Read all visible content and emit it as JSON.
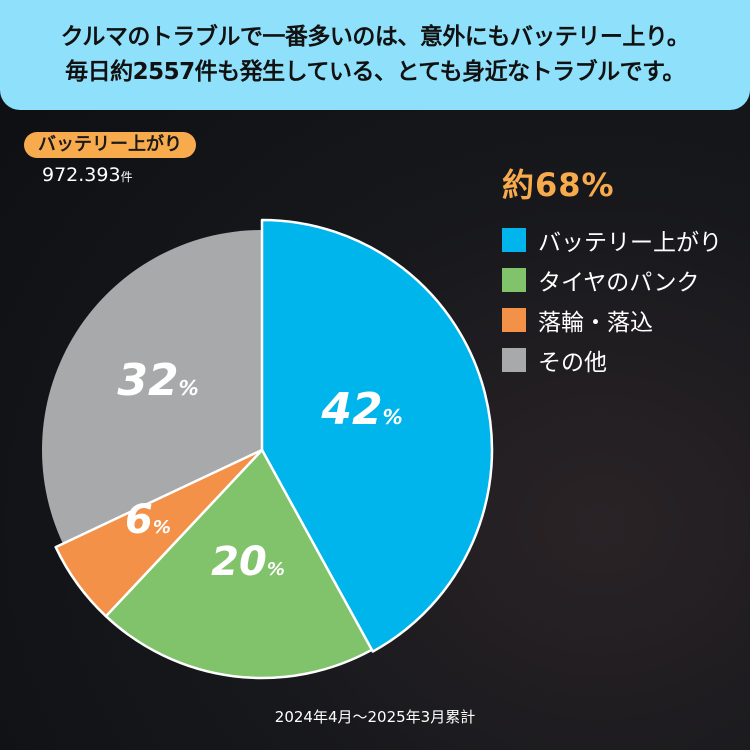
{
  "banner": {
    "line1": "クルマのトラブルで一番多いのは、意外にもバッテリー上り。",
    "line2": "毎日約2557件も発生している、とても身近なトラブルです。"
  },
  "highlight": {
    "badge": "バッテリー上がり",
    "count": "972.393",
    "count_unit": "件"
  },
  "headline_pct": "約68%",
  "legend": [
    {
      "label": "バッテリー上がり",
      "color": "#00b4ec"
    },
    {
      "label": "タイヤのパンク",
      "color": "#80c36a"
    },
    {
      "label": "落輪・落込",
      "color": "#f39149"
    },
    {
      "label": "その他",
      "color": "#a8a9aa"
    }
  ],
  "footer": "2024年4月～2025年3月累計",
  "chart_data": {
    "type": "pie",
    "title": "クルマのトラブル内訳",
    "categories": [
      "バッテリー上がり",
      "タイヤのパンク",
      "落輪・落込",
      "その他"
    ],
    "values": [
      42,
      20,
      6,
      32
    ],
    "unit": "%",
    "colors": [
      "#00b4ec",
      "#80c36a",
      "#f39149",
      "#a8a9aa"
    ],
    "labels": [
      "42",
      "20",
      "6",
      "32"
    ],
    "legend_position": "right",
    "annotation": "約68%",
    "period": "2024年4月～2025年3月累計"
  }
}
